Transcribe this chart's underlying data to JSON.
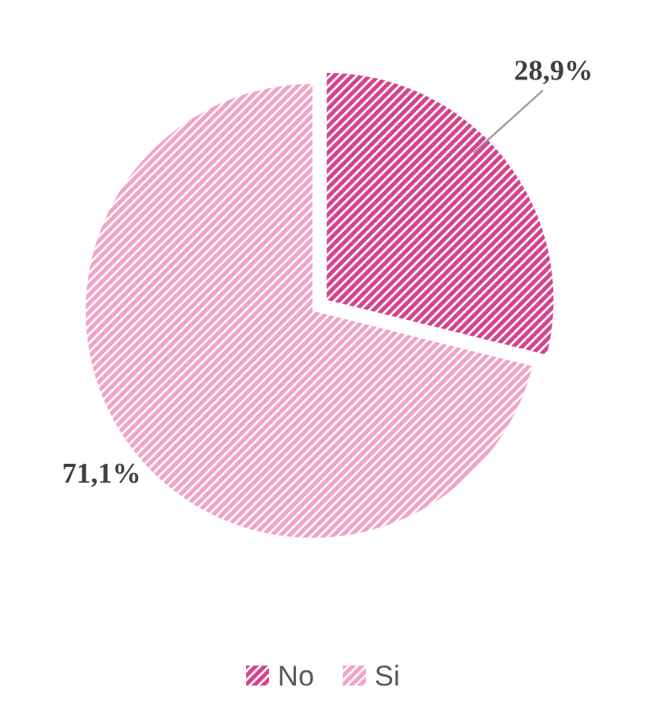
{
  "chart_data": {
    "type": "pie",
    "categories": [
      "No",
      "Si"
    ],
    "values": [
      28.9,
      71.1
    ],
    "colors": [
      "#d6448c",
      "#f2a3c7"
    ],
    "value_labels": [
      "28,9%",
      "71,1%"
    ],
    "legend": "bottom"
  }
}
